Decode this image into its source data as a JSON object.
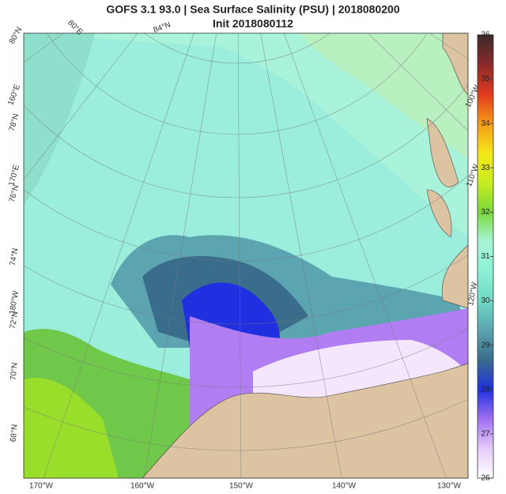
{
  "title": "GOFS 3.1 93.0  |  Sea Surface Salinity (PSU)  |  2018080200",
  "subtitle": "Init 2018080112",
  "map": {
    "lat_labels": [
      "80°N",
      "84°N",
      "78°N",
      "76°N",
      "74°N",
      "72°N",
      "70°N",
      "68°N"
    ],
    "lon_labels_top_left": [
      "80°E",
      "160°E",
      "170°E",
      "180°W"
    ],
    "lon_labels_right": [
      "100°W",
      "110°W",
      "120°W"
    ],
    "lon_labels_bottom": [
      "170°W",
      "160°W",
      "150°W",
      "140°W",
      "130°W"
    ]
  },
  "colorbar": {
    "range": [
      26,
      36
    ],
    "ticks": [
      26,
      27,
      28,
      29,
      30,
      31,
      32,
      33,
      34,
      35,
      36
    ],
    "colors": [
      "#ffffff",
      "#e6ccfa",
      "#a070f0",
      "#2030e0",
      "#3a6d8c",
      "#5ba4b0",
      "#6fd9c4",
      "#8cf0d4",
      "#a8f5d8",
      "#7ad83a",
      "#c8ec20",
      "#f5e81a",
      "#f59a18",
      "#e03a20",
      "#8a2a2a",
      "#3a2a2a"
    ]
  }
}
